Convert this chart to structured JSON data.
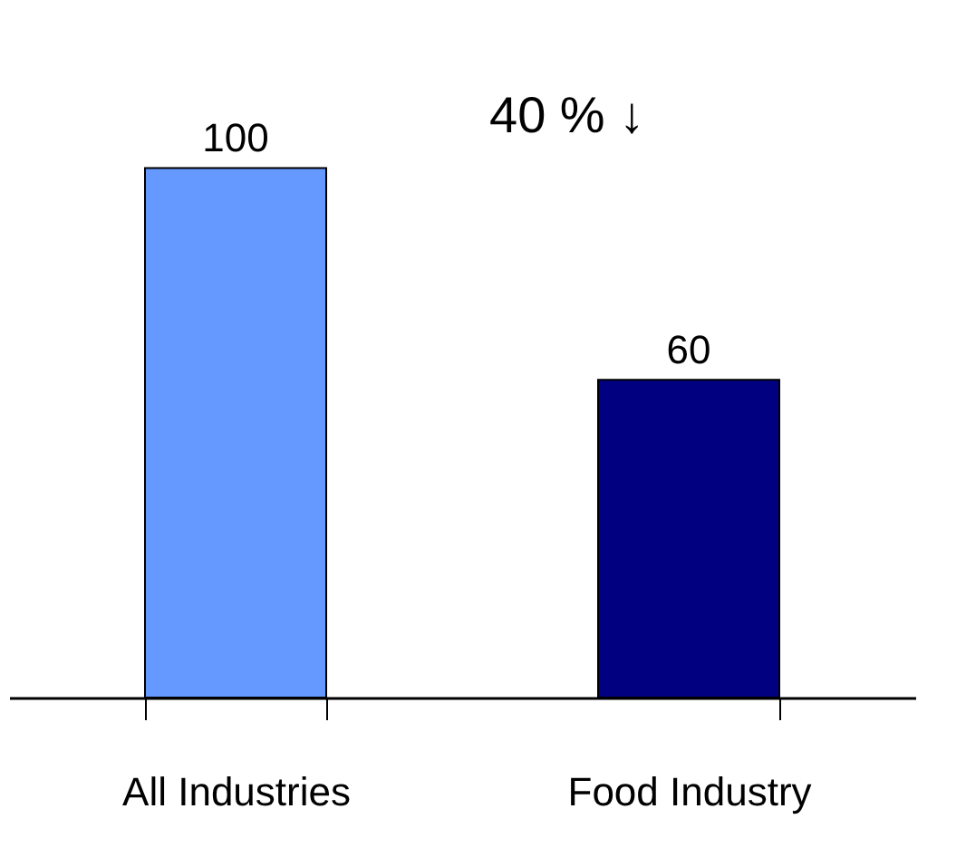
{
  "chart_data": {
    "type": "bar",
    "categories": [
      "All Industries",
      "Food Industry"
    ],
    "values": [
      100,
      60
    ],
    "colors": [
      "#6699ff",
      "#000080"
    ],
    "data_labels": true,
    "tick_labels": "x",
    "annotations": [
      "40 % ↓"
    ]
  }
}
